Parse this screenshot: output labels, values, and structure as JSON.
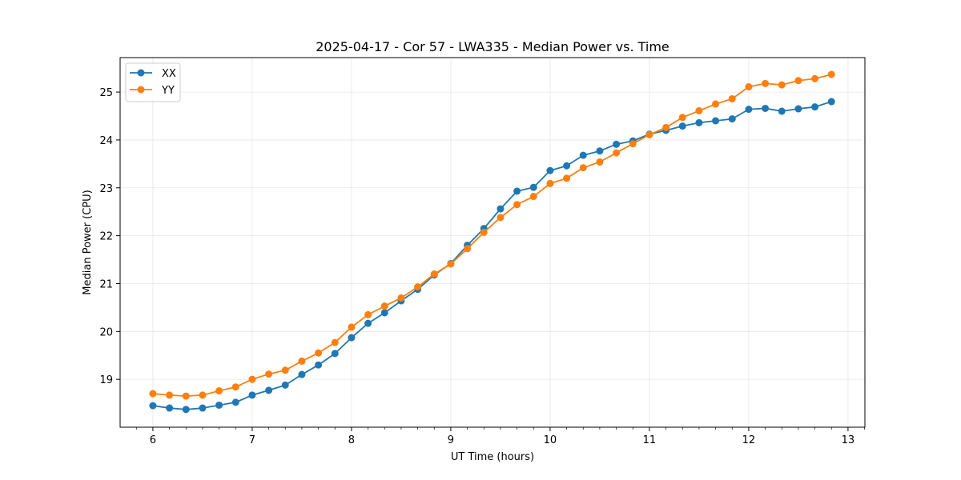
{
  "chart_data": {
    "type": "line",
    "title": "2025-04-17 - Cor 57 - LWA335 - Median Power vs. Time",
    "xlabel": "UT Time (hours)",
    "ylabel": "Median Power (CPU)",
    "xlim": [
      5.67,
      13.17
    ],
    "ylim": [
      18.0,
      25.72
    ],
    "xticks": [
      6,
      7,
      8,
      9,
      10,
      11,
      12,
      13
    ],
    "yticks": [
      19,
      20,
      21,
      22,
      23,
      24,
      25
    ],
    "grid": true,
    "legend_position": "top-left",
    "x": [
      6.0,
      6.1667,
      6.3333,
      6.5,
      6.6667,
      6.8333,
      7.0,
      7.1667,
      7.3333,
      7.5,
      7.6667,
      7.8333,
      8.0,
      8.1667,
      8.3333,
      8.5,
      8.6667,
      8.8333,
      9.0,
      9.1667,
      9.3333,
      9.5,
      9.6667,
      9.8333,
      10.0,
      10.1667,
      10.3333,
      10.5,
      10.6667,
      10.8333,
      11.0,
      11.1667,
      11.3333,
      11.5,
      11.6667,
      11.8333,
      12.0,
      12.1667,
      12.3333,
      12.5,
      12.6667,
      12.8333
    ],
    "series": [
      {
        "name": "XX",
        "color": "#1f77b4",
        "values": [
          18.45,
          18.4,
          18.37,
          18.4,
          18.46,
          18.52,
          18.67,
          18.77,
          18.88,
          19.1,
          19.3,
          19.54,
          19.87,
          20.17,
          20.39,
          20.64,
          20.88,
          21.18,
          21.42,
          21.8,
          22.15,
          22.56,
          22.93,
          23.01,
          23.36,
          23.46,
          23.68,
          23.77,
          23.91,
          23.98,
          24.12,
          24.2,
          24.29,
          24.36,
          24.4,
          24.44,
          24.64,
          24.66,
          24.6,
          24.65,
          24.69,
          24.8
        ]
      },
      {
        "name": "YY",
        "color": "#ff7f0e",
        "values": [
          18.7,
          18.67,
          18.65,
          18.67,
          18.76,
          18.84,
          19.0,
          19.11,
          19.19,
          19.38,
          19.55,
          19.77,
          20.09,
          20.35,
          20.53,
          20.7,
          20.93,
          21.2,
          21.41,
          21.73,
          22.07,
          22.38,
          22.65,
          22.82,
          23.09,
          23.2,
          23.42,
          23.54,
          23.73,
          23.92,
          24.11,
          24.26,
          24.47,
          24.61,
          24.75,
          24.86,
          25.11,
          25.18,
          25.15,
          25.24,
          25.28,
          25.37
        ]
      }
    ]
  }
}
